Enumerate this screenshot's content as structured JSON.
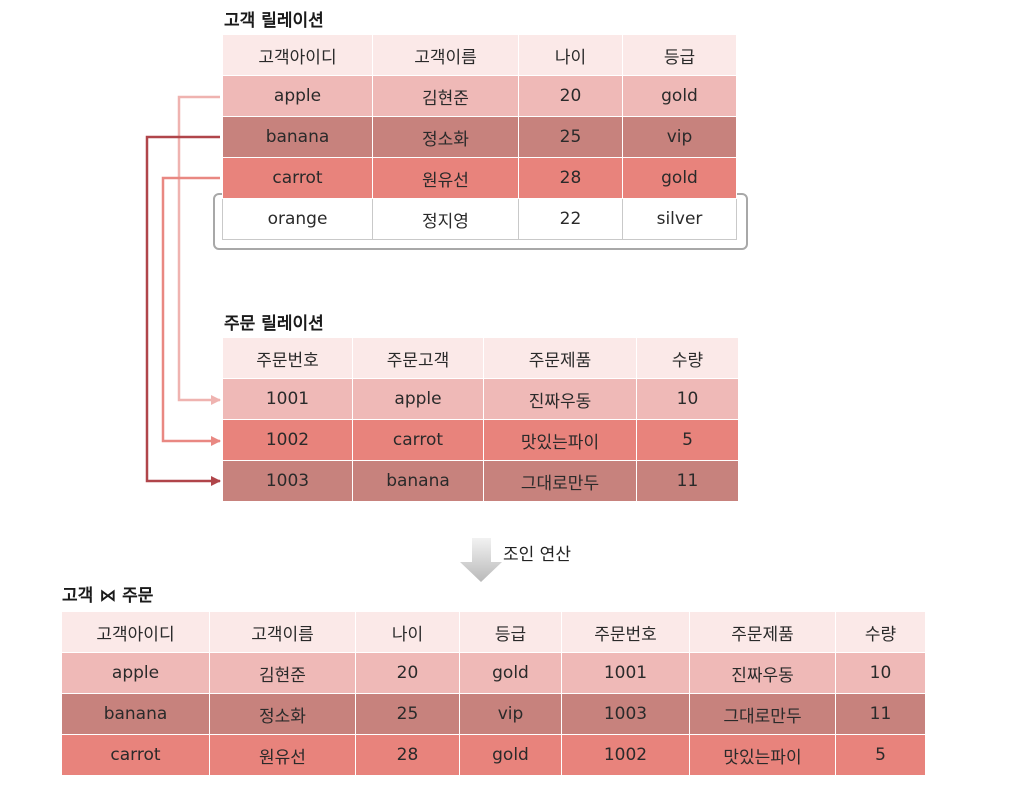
{
  "customer": {
    "title": "고객 릴레이션",
    "headers": [
      "고객아이디",
      "고객이름",
      "나이",
      "등급"
    ],
    "rows": [
      [
        "apple",
        "김현준",
        "20",
        "gold"
      ],
      [
        "banana",
        "정소화",
        "25",
        "vip"
      ],
      [
        "carrot",
        "원유선",
        "28",
        "gold"
      ],
      [
        "orange",
        "정지영",
        "22",
        "silver"
      ]
    ]
  },
  "order": {
    "title": "주문 릴레이션",
    "headers": [
      "주문번호",
      "주문고객",
      "주문제품",
      "수량"
    ],
    "rows": [
      [
        "1001",
        "apple",
        "진짜우동",
        "10"
      ],
      [
        "1002",
        "carrot",
        "맛있는파이",
        "5"
      ],
      [
        "1003",
        "banana",
        "그대로만두",
        "11"
      ]
    ]
  },
  "operation": {
    "label": "조인 연산"
  },
  "result": {
    "title": "고객 ⋈ 주문",
    "headers": [
      "고객아이디",
      "고객이름",
      "나이",
      "등급",
      "주문번호",
      "주문제품",
      "수량"
    ],
    "rows": [
      [
        "apple",
        "김현준",
        "20",
        "gold",
        "1001",
        "진짜우동",
        "10"
      ],
      [
        "banana",
        "정소화",
        "25",
        "vip",
        "1003",
        "그대로만두",
        "11"
      ],
      [
        "carrot",
        "원유선",
        "28",
        "gold",
        "1002",
        "맛있는파이",
        "5"
      ]
    ]
  },
  "colors": {
    "header": "#fbe9e8",
    "apple_row": "#efb9b7",
    "banana_row": "#c7827d",
    "carrot_row": "#e8837c",
    "arrow_apple": "#efb3b0",
    "arrow_banana": "#b0454a",
    "arrow_carrot": "#e98882"
  }
}
